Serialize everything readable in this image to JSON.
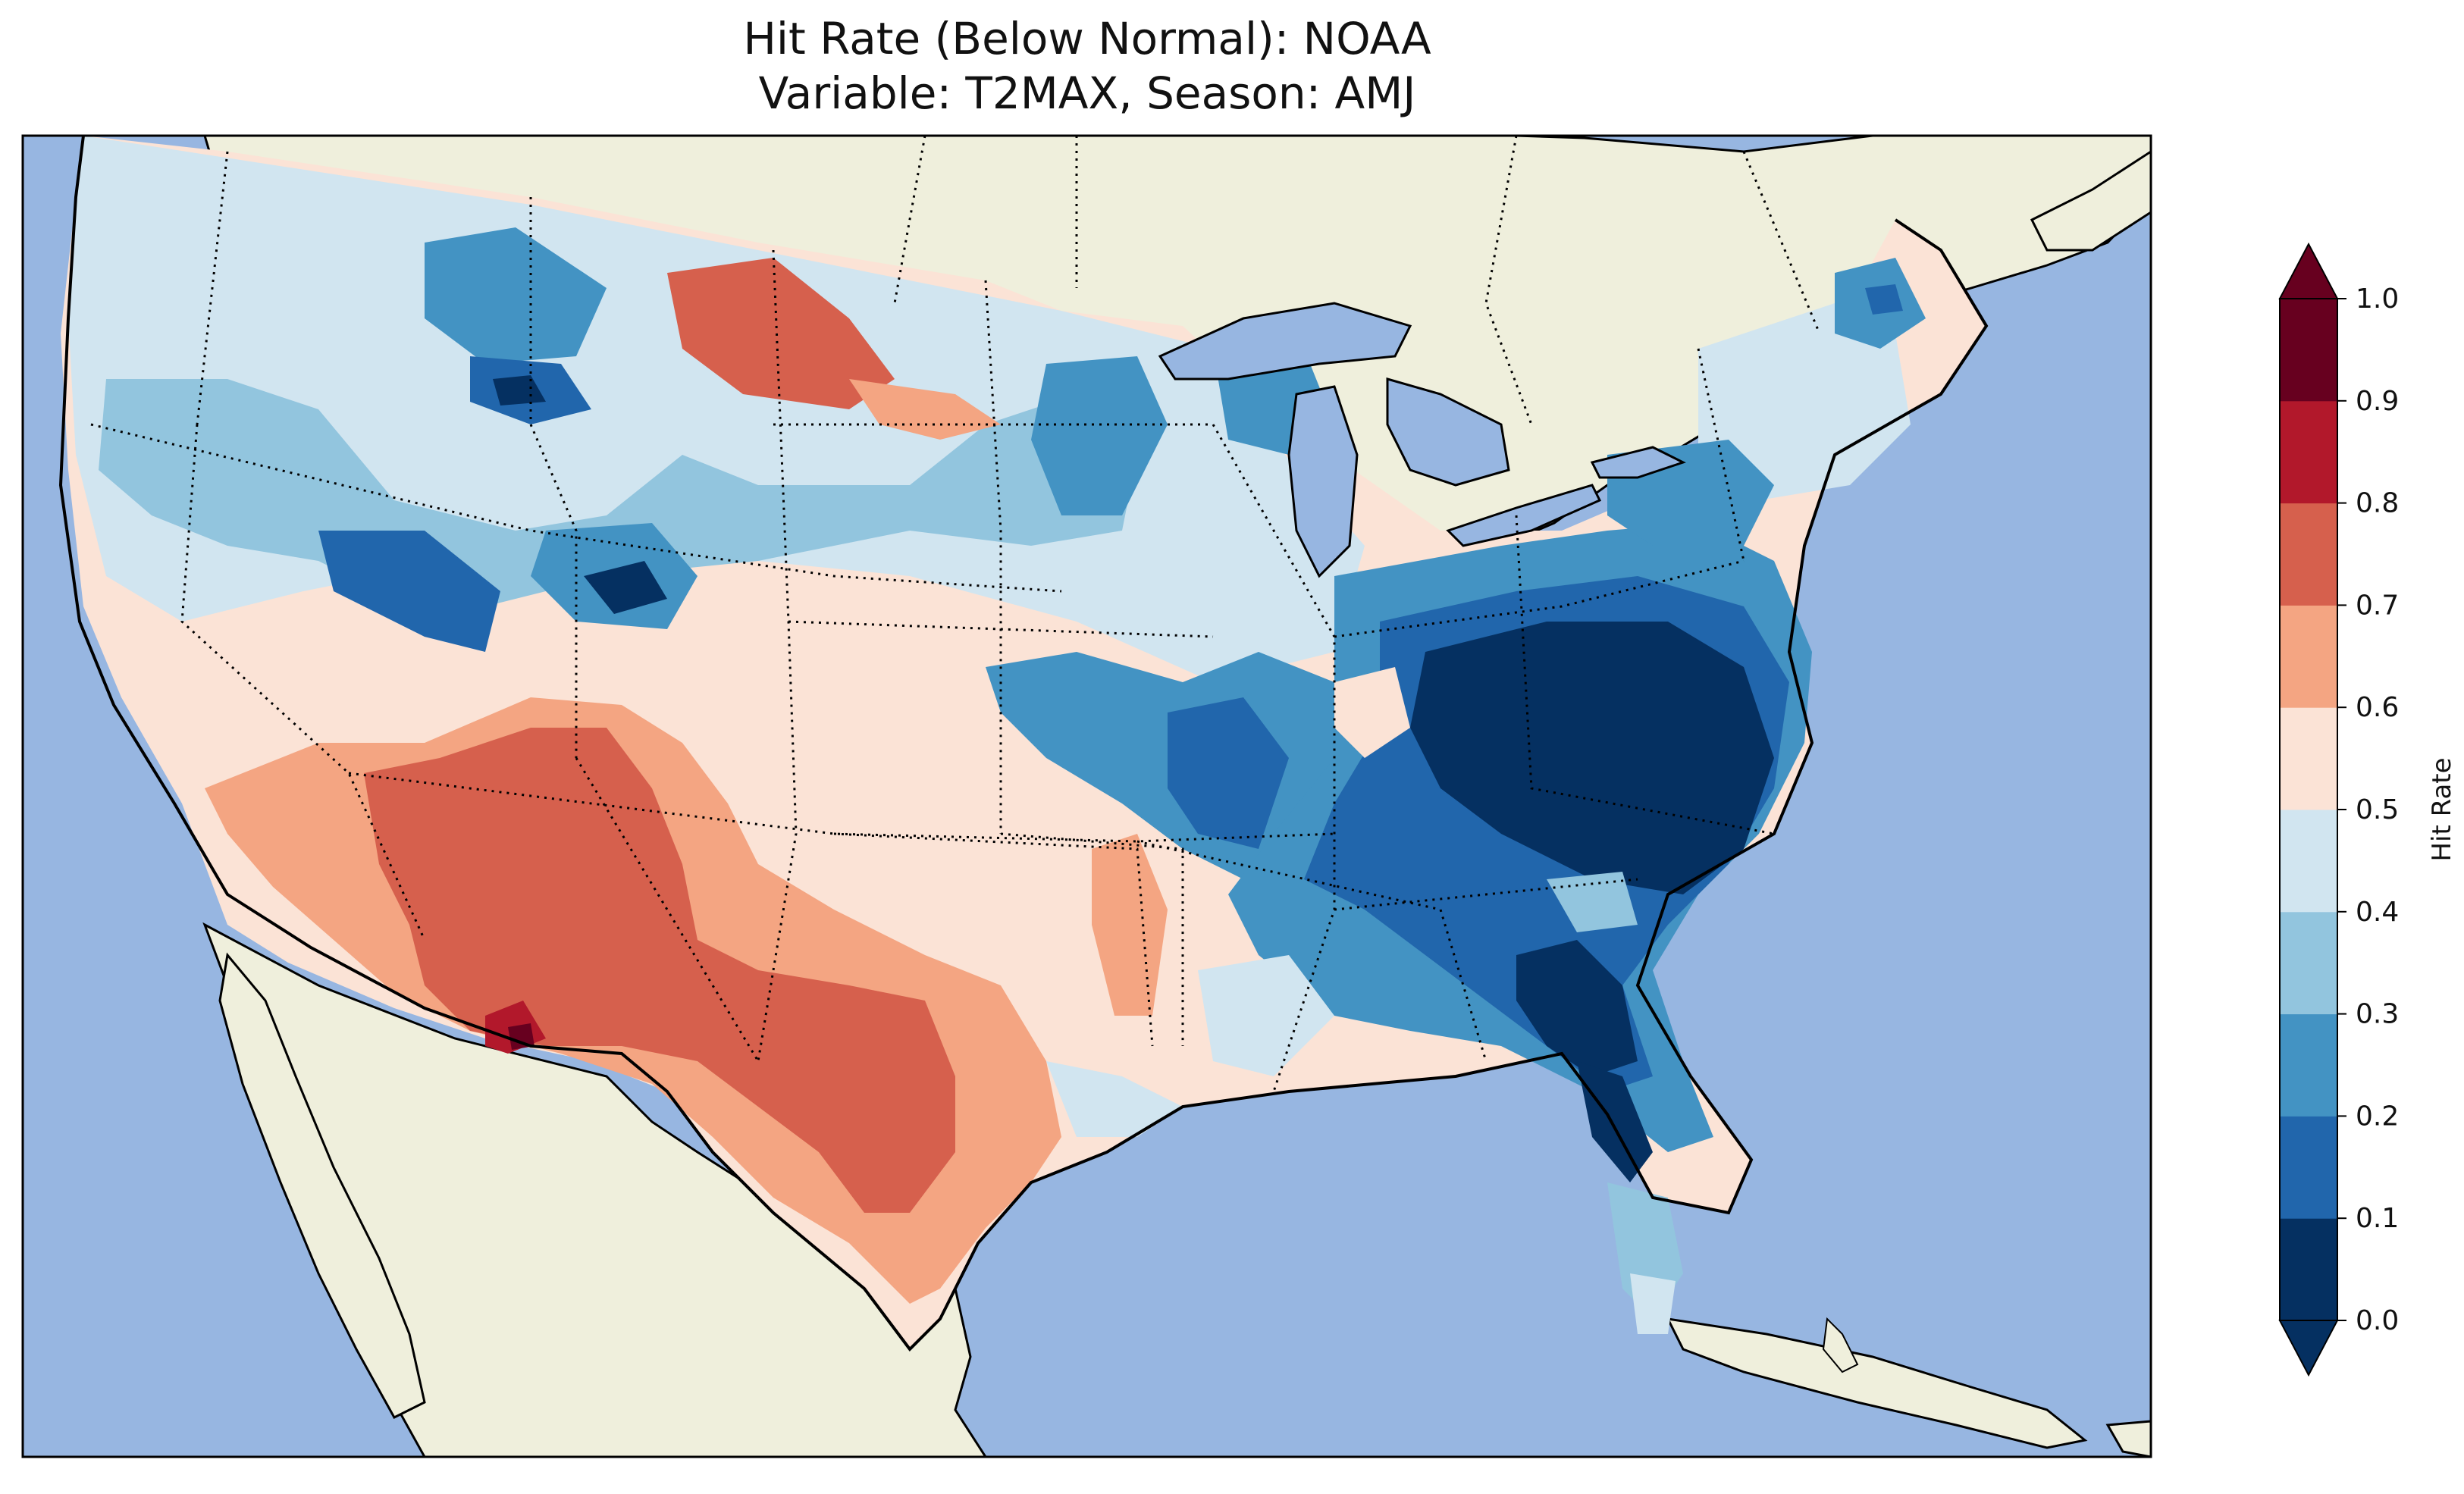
{
  "title": {
    "line1": "Hit Rate (Below Normal): NOAA",
    "line2": "Variable: T2MAX, Season: AMJ"
  },
  "colors": {
    "ocean": "#97b6e1",
    "land": "#efefdc",
    "bins": [
      "#053061",
      "#2166ac",
      "#4393c3",
      "#92c5de",
      "#d1e5f0",
      "#fbe3d6",
      "#f4a582",
      "#d6604d",
      "#b2182b",
      "#67001f"
    ]
  },
  "colorbar": {
    "label": "Hit Rate",
    "ticks": [
      "0.0",
      "0.1",
      "0.2",
      "0.3",
      "0.4",
      "0.5",
      "0.6",
      "0.7",
      "0.8",
      "0.9",
      "1.0"
    ],
    "extend": "both"
  },
  "regions": [
    {
      "name": "Pacific Northwest coast",
      "value": 0.45
    },
    {
      "name": "Northern Rockies (Idaho/Montana)",
      "value": 0.15
    },
    {
      "name": "North Dakota",
      "value": 0.75
    },
    {
      "name": "Southwest (Arizona/New Mexico)",
      "value": 0.75
    },
    {
      "name": "Southern New Mexico spot",
      "value": 0.95
    },
    {
      "name": "Texas",
      "value": 0.75
    },
    {
      "name": "Central Plains",
      "value": 0.55
    },
    {
      "name": "Ohio Valley / Mid-Atlantic",
      "value": 0.05
    },
    {
      "name": "Southeast / Florida",
      "value": 0.15
    },
    {
      "name": "New England",
      "value": 0.35
    }
  ]
}
